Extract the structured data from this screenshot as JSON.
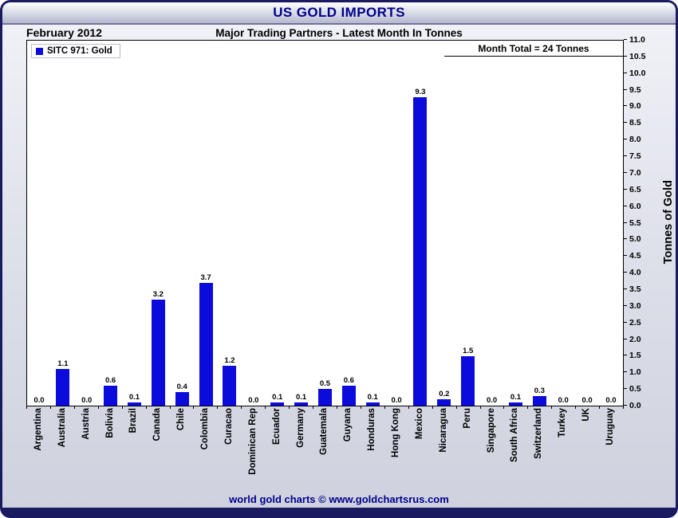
{
  "window": {
    "title": "US GOLD IMPORTS"
  },
  "header": {
    "date": "February 2012",
    "subtitle": "Major Trading Partners - Latest Month In Tonnes"
  },
  "legend": {
    "label": "SITC 971: Gold",
    "color": "#0b0bdb"
  },
  "annotation": {
    "month_total": "Month Total = 24 Tonnes"
  },
  "footer": {
    "credit": "world gold charts © www.goldchartsrus.com"
  },
  "theme": {
    "accent": "#00008b",
    "frame_border": "#1a1a60"
  },
  "chart_data": {
    "type": "bar",
    "title": "US GOLD IMPORTS",
    "subtitle": "Major Trading Partners - Latest Month In Tonnes",
    "categories": [
      "Argentina",
      "Australia",
      "Austria",
      "Bolivia",
      "Brazil",
      "Canada",
      "Chile",
      "Colombia",
      "Curacao",
      "Dominican Rep",
      "Ecuador",
      "Germany",
      "Guatemala",
      "Guyana",
      "Honduras",
      "Hong Kong",
      "Mexico",
      "Nicaragua",
      "Peru",
      "Singapore",
      "South Africa",
      "Switzerland",
      "Turkey",
      "UK",
      "Uruguay"
    ],
    "values": [
      0.0,
      1.1,
      0.0,
      0.6,
      0.1,
      3.2,
      0.4,
      3.7,
      1.2,
      0.0,
      0.1,
      0.1,
      0.5,
      0.6,
      0.1,
      0.0,
      9.3,
      0.2,
      1.5,
      0.0,
      0.1,
      0.3,
      0.0,
      0.0,
      0.0
    ],
    "xlabel": "",
    "ylabel": "Tonnes of Gold",
    "ylim": [
      0,
      11
    ],
    "ytick_step": 0.5,
    "grid": false,
    "legend_position": "top-left",
    "bar_color": "#0b0bdb",
    "series_name": "SITC 971: Gold"
  }
}
